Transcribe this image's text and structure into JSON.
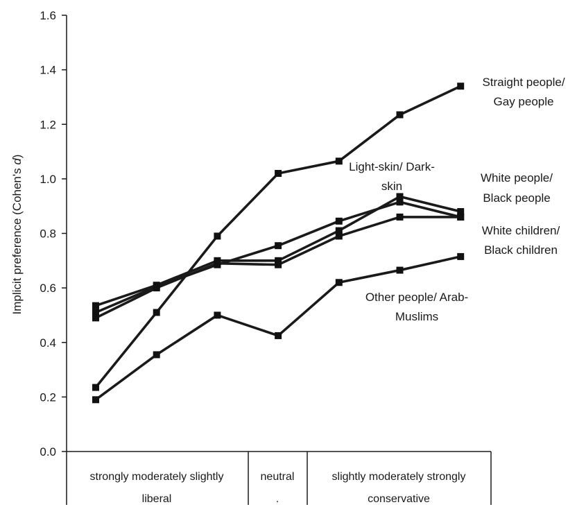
{
  "chart_data": {
    "type": "line",
    "ylabel": "Implicit preference (Cohen's d)",
    "ylabel_parts": [
      "Implicit preference (Cohen's ",
      "d",
      ")"
    ],
    "ylim": [
      0.0,
      1.6
    ],
    "yticks": [
      0.0,
      0.2,
      0.4,
      0.6,
      0.8,
      1.0,
      1.2,
      1.4,
      1.6
    ],
    "ytick_labels": [
      "0.0",
      "0.2",
      "0.4",
      "0.6",
      "0.8",
      "1.0",
      "1.2",
      "1.4",
      "1.6"
    ],
    "x": [
      1,
      2,
      3,
      4,
      5,
      6,
      7
    ],
    "x_groups": [
      {
        "lines": [
          "strongly moderately slightly",
          "liberal"
        ],
        "from": 1,
        "to": 3
      },
      {
        "lines": [
          "neutral",
          "."
        ],
        "from": 4,
        "to": 4
      },
      {
        "lines": [
          "slightly moderately strongly",
          "conservative"
        ],
        "from": 5,
        "to": 7
      }
    ],
    "series": [
      {
        "name": "Straight people/ Gay people",
        "label_lines": [
          "Straight people/",
          "Gay people"
        ],
        "values": [
          0.235,
          0.51,
          0.79,
          1.02,
          1.065,
          1.235,
          1.34
        ]
      },
      {
        "name": "White people/ Black people",
        "label_lines": [
          "White people/",
          "Black people"
        ],
        "values": [
          0.535,
          0.61,
          0.7,
          0.7,
          0.81,
          0.935,
          0.88
        ]
      },
      {
        "name": "Light-skin/ Dark-skin",
        "label_lines": [
          "Light-skin/ Dark-",
          "skin"
        ],
        "values": [
          0.51,
          0.605,
          0.685,
          0.755,
          0.845,
          0.915,
          0.86
        ]
      },
      {
        "name": "White children/ Black children",
        "label_lines": [
          "White children/",
          "Black children"
        ],
        "values": [
          0.49,
          0.6,
          0.69,
          0.685,
          0.79,
          0.86,
          0.86
        ]
      },
      {
        "name": "Other people/ Arab-Muslims",
        "label_lines": [
          "Other people/ Arab-",
          "Muslims"
        ],
        "values": [
          0.19,
          0.355,
          0.5,
          0.425,
          0.62,
          0.665,
          0.715
        ]
      }
    ]
  }
}
